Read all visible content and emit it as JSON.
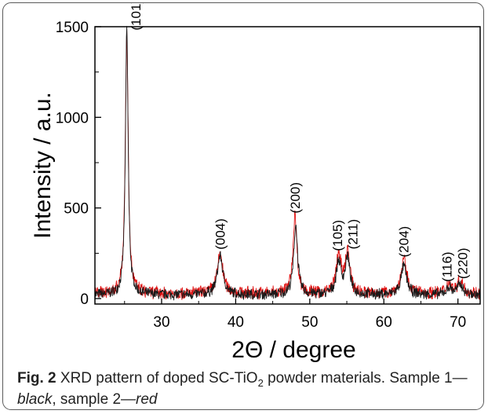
{
  "chart_data": {
    "type": "line",
    "xlabel_main": "2Θ",
    "xlabel_unit": " / degree",
    "ylabel": "Intensity / a.u.",
    "xlim": [
      21,
      73
    ],
    "ylim": [
      -30,
      1500
    ],
    "xticks": [
      30,
      40,
      50,
      60,
      70
    ],
    "yticks": [
      0,
      500,
      1000,
      1500
    ],
    "background": {
      "black": 20,
      "red": 28
    },
    "noise": {
      "black": 34,
      "red": 40
    },
    "series": [
      {
        "color": "#1a1a1a",
        "peaks": [
          {
            "x": 25.3,
            "h": 1475,
            "w": 0.22
          },
          {
            "x": 37.9,
            "h": 215,
            "w": 0.45
          },
          {
            "x": 48.1,
            "h": 385,
            "w": 0.32
          },
          {
            "x": 53.9,
            "h": 180,
            "w": 0.4
          },
          {
            "x": 55.1,
            "h": 205,
            "w": 0.35
          },
          {
            "x": 62.7,
            "h": 160,
            "w": 0.45
          },
          {
            "x": 68.8,
            "h": 40,
            "w": 0.45
          },
          {
            "x": 70.3,
            "h": 55,
            "w": 0.45
          }
        ]
      },
      {
        "color": "#e01010",
        "peaks": [
          {
            "x": 25.3,
            "h": 1430,
            "w": 0.24
          },
          {
            "x": 37.9,
            "h": 220,
            "w": 0.45
          },
          {
            "x": 48.0,
            "h": 430,
            "w": 0.32
          },
          {
            "x": 53.9,
            "h": 215,
            "w": 0.4
          },
          {
            "x": 55.1,
            "h": 230,
            "w": 0.35
          },
          {
            "x": 62.7,
            "h": 185,
            "w": 0.45
          },
          {
            "x": 68.8,
            "h": 55,
            "w": 0.45
          },
          {
            "x": 70.3,
            "h": 70,
            "w": 0.45
          }
        ]
      }
    ],
    "annotations": [
      {
        "text": "(101)",
        "x": 26.5,
        "y": 1480
      },
      {
        "text": "(004)",
        "x": 37.9,
        "y": 270
      },
      {
        "text": "(200)",
        "x": 48.0,
        "y": 470
      },
      {
        "text": "(105)",
        "x": 53.7,
        "y": 262
      },
      {
        "text": "(211)",
        "x": 55.8,
        "y": 272
      },
      {
        "text": "(204)",
        "x": 62.7,
        "y": 228
      },
      {
        "text": "(116)",
        "x": 68.5,
        "y": 92
      },
      {
        "text": "(220)",
        "x": 70.6,
        "y": 108
      }
    ]
  },
  "caption": {
    "label": "Fig. 2",
    "text_a": " XRD pattern of doped SC-TiO",
    "sub": "2",
    "text_b": " powder materials. Sample 1—",
    "black_word": "black",
    "text_c": ", sample 2—",
    "red_word": "red"
  }
}
